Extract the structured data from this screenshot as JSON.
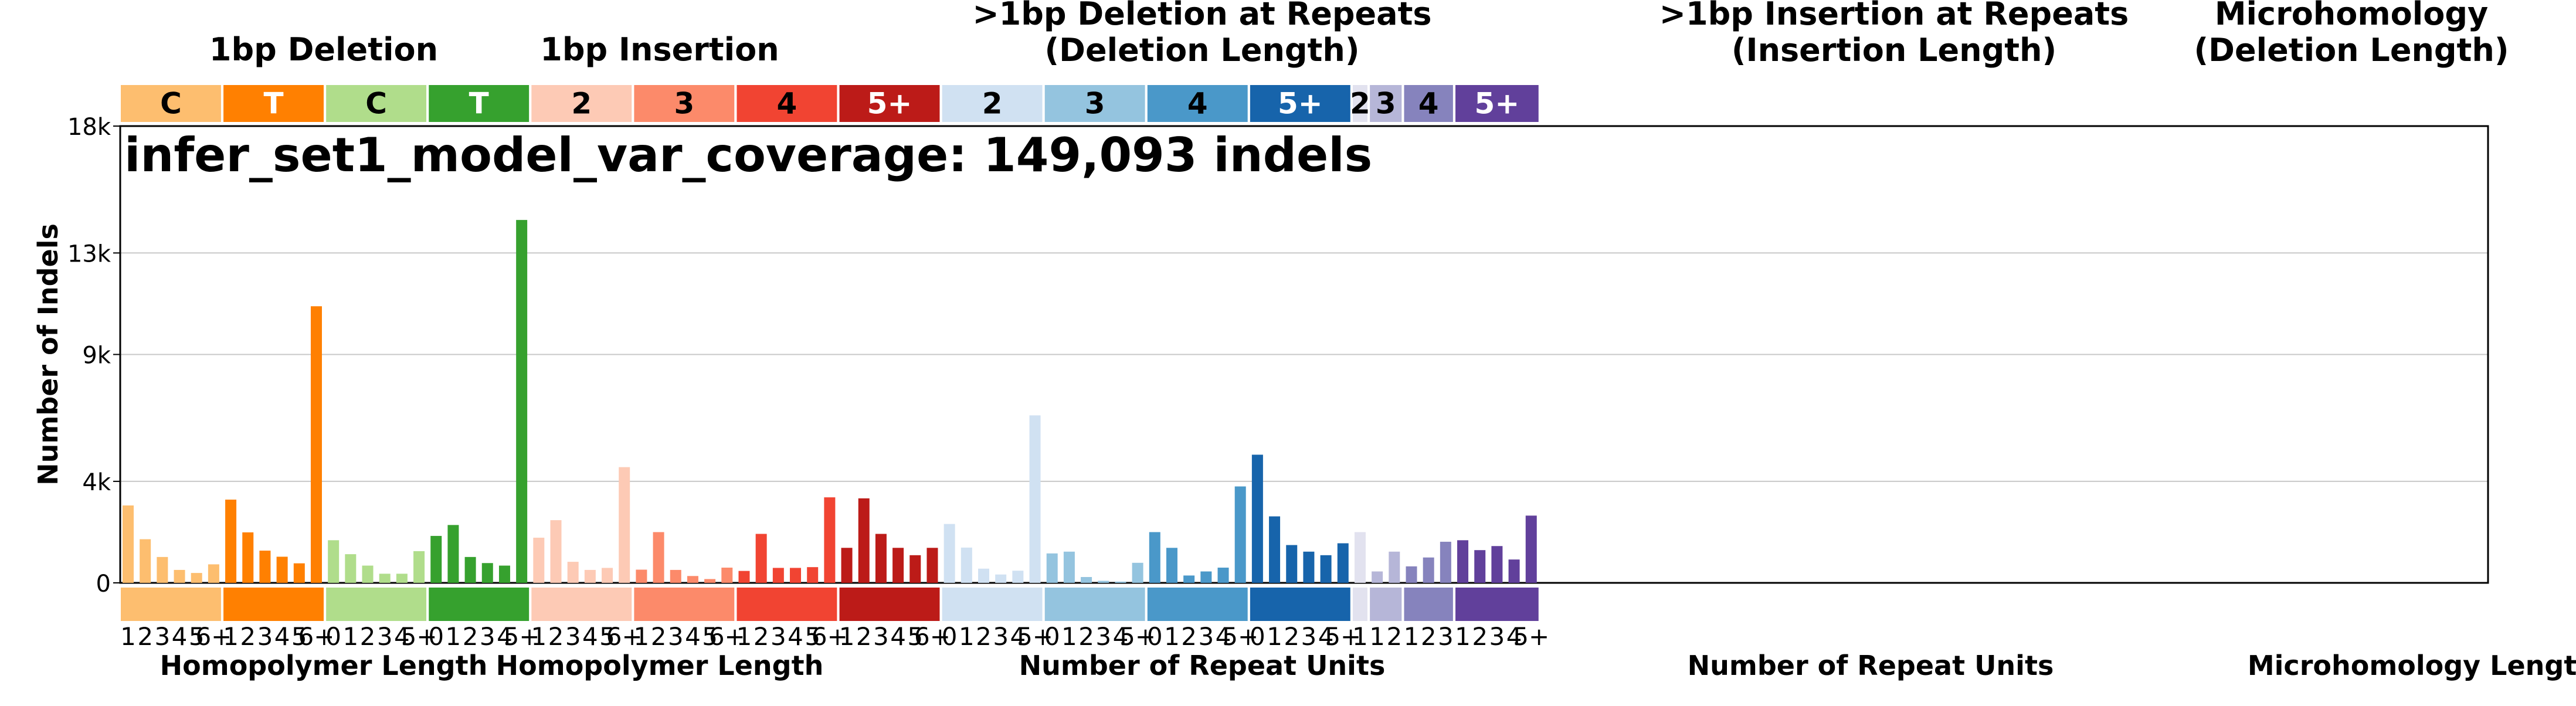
{
  "chart_data": {
    "type": "bar",
    "title": "infer_set1_model_var_coverage: 149,093 indels",
    "ylabel": "Number of Indels",
    "ylim": [
      0,
      18000
    ],
    "yticks": [
      0,
      4000,
      9000,
      13000,
      18000
    ],
    "ytick_labels": [
      "0",
      "4k",
      "9k",
      "13k",
      "18k"
    ],
    "grid": true,
    "group_headers": [
      {
        "label": "1bp Deletion"
      },
      {
        "label": "1bp Insertion"
      },
      {
        "label": ">1bp Deletion at Repeats\n(Deletion Length)"
      },
      {
        "label": ">1bp Insertion at Repeats\n(Insertion Length)"
      },
      {
        "label": "Microhomology\n(Deletion Length)"
      }
    ],
    "xlabels": [
      {
        "label": "Homopolymer Length"
      },
      {
        "label": "Homopolymer Length"
      },
      {
        "label": "Number of Repeat Units"
      },
      {
        "label": "Number of Repeat Units"
      },
      {
        "label": "Microhomology Length"
      }
    ],
    "categories": [
      {
        "label": "C",
        "color": "#FDBE6F",
        "text_color": "#000000",
        "ticks": [
          "1",
          "2",
          "3",
          "4",
          "5",
          "6+"
        ],
        "values": [
          3050,
          1720,
          1020,
          510,
          390,
          730
        ]
      },
      {
        "label": "T",
        "color": "#FF8001",
        "text_color": "#FFFFFF",
        "ticks": [
          "1",
          "2",
          "3",
          "4",
          "5",
          "6+"
        ],
        "values": [
          3280,
          1990,
          1270,
          1030,
          770,
          10900
        ]
      },
      {
        "label": "C",
        "color": "#B0DD8B",
        "text_color": "#000000",
        "ticks": [
          "0",
          "1",
          "2",
          "3",
          "4",
          "5+"
        ],
        "values": [
          1680,
          1130,
          680,
          360,
          360,
          1250
        ]
      },
      {
        "label": "T",
        "color": "#36A12E",
        "text_color": "#FFFFFF",
        "ticks": [
          "0",
          "1",
          "2",
          "3",
          "4",
          "5+"
        ],
        "values": [
          1850,
          2280,
          1020,
          780,
          680,
          14300
        ]
      },
      {
        "label": "2",
        "color": "#FDCAB5",
        "text_color": "#000000",
        "ticks": [
          "1",
          "2",
          "3",
          "4",
          "5",
          "6+"
        ],
        "values": [
          1780,
          2470,
          830,
          510,
          590,
          4560
        ]
      },
      {
        "label": "3",
        "color": "#FC8A6A",
        "text_color": "#000000",
        "ticks": [
          "1",
          "2",
          "3",
          "4",
          "5",
          "6+"
        ],
        "values": [
          520,
          2000,
          510,
          270,
          150,
          600
        ]
      },
      {
        "label": "4",
        "color": "#F14432",
        "text_color": "#000000",
        "ticks": [
          "1",
          "2",
          "3",
          "4",
          "5",
          "6+"
        ],
        "values": [
          470,
          1930,
          590,
          590,
          620,
          3370
        ]
      },
      {
        "label": "5+",
        "color": "#BC1B18",
        "text_color": "#FFFFFF",
        "ticks": [
          "1",
          "2",
          "3",
          "4",
          "5",
          "6+"
        ],
        "values": [
          1380,
          3330,
          1930,
          1380,
          1090,
          1380
        ]
      },
      {
        "label": "2",
        "color": "#D0E1F2",
        "text_color": "#000000",
        "ticks": [
          "0",
          "1",
          "2",
          "3",
          "4",
          "5+"
        ],
        "values": [
          2320,
          1390,
          560,
          330,
          480,
          6600
        ]
      },
      {
        "label": "3",
        "color": "#94C4DF",
        "text_color": "#000000",
        "ticks": [
          "0",
          "1",
          "2",
          "3",
          "4",
          "5+"
        ],
        "values": [
          1160,
          1230,
          230,
          80,
          50,
          790
        ]
      },
      {
        "label": "4",
        "color": "#4A98C9",
        "text_color": "#000000",
        "ticks": [
          "0",
          "1",
          "2",
          "3",
          "4",
          "5+"
        ],
        "values": [
          2000,
          1380,
          290,
          450,
          600,
          3800
        ]
      },
      {
        "label": "5+",
        "color": "#1764AB",
        "text_color": "#FFFFFF",
        "ticks": [
          "0",
          "1",
          "2",
          "3",
          "4",
          "5+"
        ],
        "values": [
          5050,
          2620,
          1490,
          1230,
          1090,
          1560
        ]
      },
      {
        "label": "2",
        "color": "#E2E2EF",
        "text_color": "#000000",
        "ticks": [
          "1"
        ],
        "values": [
          2000
        ]
      },
      {
        "label": "3",
        "color": "#B6B6D8",
        "text_color": "#000000",
        "ticks": [
          "1",
          "2"
        ],
        "values": [
          450,
          1230
        ]
      },
      {
        "label": "4",
        "color": "#8683BD",
        "text_color": "#000000",
        "ticks": [
          "1",
          "2",
          "3"
        ],
        "values": [
          650,
          1000,
          1620
        ]
      },
      {
        "label": "5+",
        "color": "#61409B",
        "text_color": "#FFFFFF",
        "ticks": [
          "1",
          "2",
          "3",
          "4",
          "5+"
        ],
        "values": [
          1680,
          1290,
          1450,
          920,
          2650
        ]
      }
    ]
  }
}
